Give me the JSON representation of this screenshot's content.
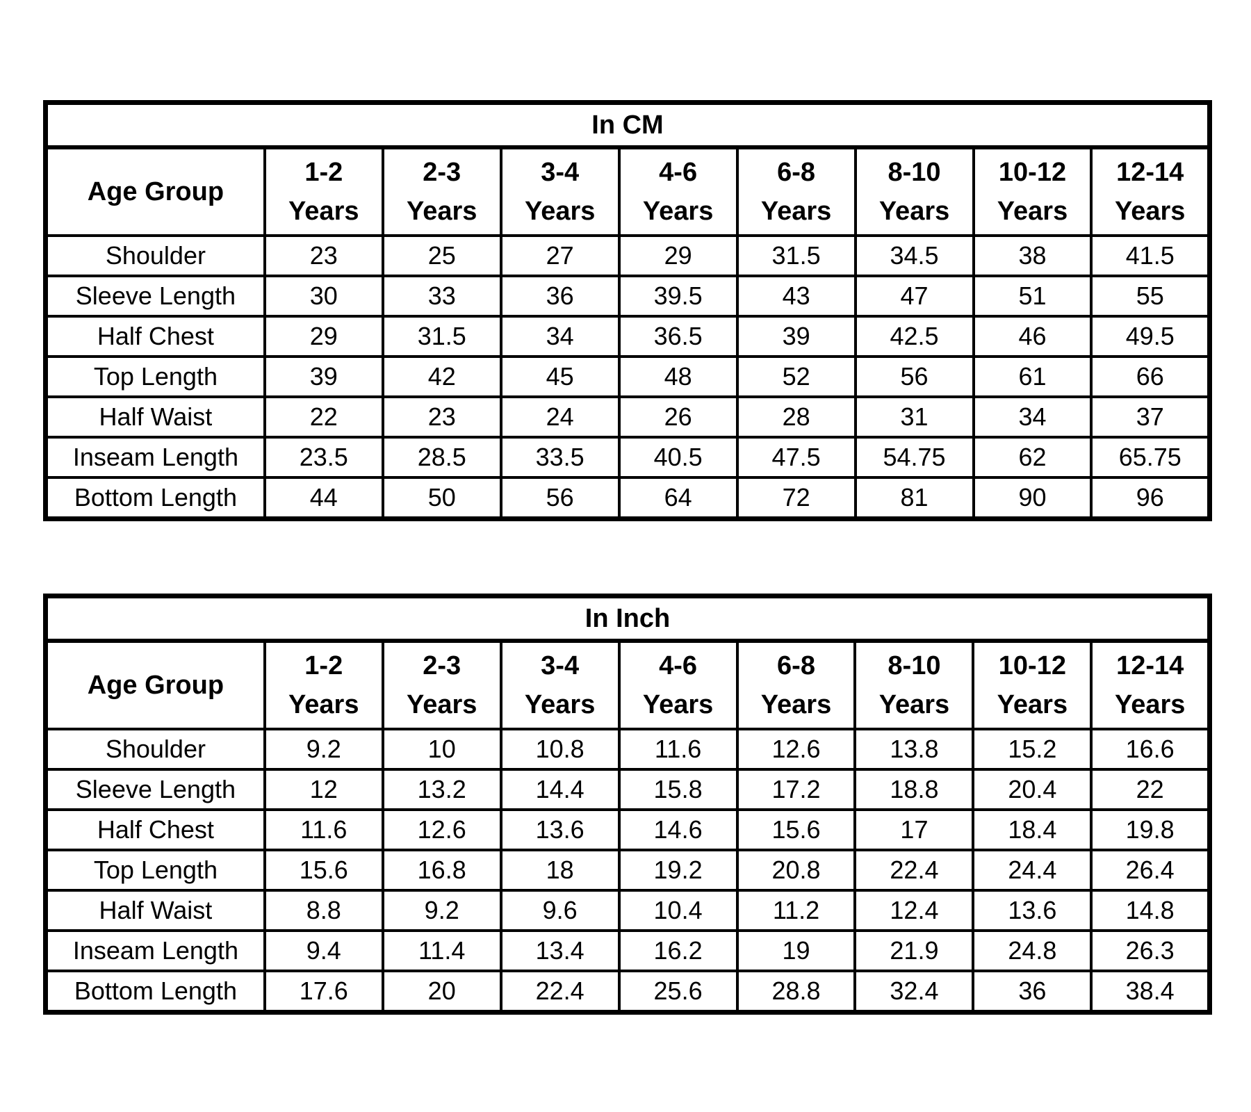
{
  "page": {
    "background_color": "#ffffff",
    "border_color": "#000000",
    "text_color": "#000000"
  },
  "tables": [
    {
      "title": "In CM",
      "corner_header": "Age Group",
      "columns": [
        {
          "range": "1-2",
          "unit": "Years"
        },
        {
          "range": "2-3",
          "unit": "Years"
        },
        {
          "range": "3-4",
          "unit": "Years"
        },
        {
          "range": "4-6",
          "unit": "Years"
        },
        {
          "range": "6-8",
          "unit": "Years"
        },
        {
          "range": "8-10",
          "unit": "Years"
        },
        {
          "range": "10-12",
          "unit": "Years"
        },
        {
          "range": "12-14",
          "unit": "Years"
        }
      ],
      "rows": [
        {
          "label": "Shoulder",
          "values": [
            "23",
            "25",
            "27",
            "29",
            "31.5",
            "34.5",
            "38",
            "41.5"
          ]
        },
        {
          "label": "Sleeve Length",
          "values": [
            "30",
            "33",
            "36",
            "39.5",
            "43",
            "47",
            "51",
            "55"
          ]
        },
        {
          "label": "Half Chest",
          "values": [
            "29",
            "31.5",
            "34",
            "36.5",
            "39",
            "42.5",
            "46",
            "49.5"
          ]
        },
        {
          "label": "Top Length",
          "values": [
            "39",
            "42",
            "45",
            "48",
            "52",
            "56",
            "61",
            "66"
          ]
        },
        {
          "label": "Half Waist",
          "values": [
            "22",
            "23",
            "24",
            "26",
            "28",
            "31",
            "34",
            "37"
          ]
        },
        {
          "label": "Inseam Length",
          "values": [
            "23.5",
            "28.5",
            "33.5",
            "40.5",
            "47.5",
            "54.75",
            "62",
            "65.75"
          ]
        },
        {
          "label": "Bottom Length",
          "values": [
            "44",
            "50",
            "56",
            "64",
            "72",
            "81",
            "90",
            "96"
          ]
        }
      ]
    },
    {
      "title": "In Inch",
      "corner_header": "Age Group",
      "columns": [
        {
          "range": "1-2",
          "unit": "Years"
        },
        {
          "range": "2-3",
          "unit": "Years"
        },
        {
          "range": "3-4",
          "unit": "Years"
        },
        {
          "range": "4-6",
          "unit": "Years"
        },
        {
          "range": "6-8",
          "unit": "Years"
        },
        {
          "range": "8-10",
          "unit": "Years"
        },
        {
          "range": "10-12",
          "unit": "Years"
        },
        {
          "range": "12-14",
          "unit": "Years"
        }
      ],
      "rows": [
        {
          "label": "Shoulder",
          "values": [
            "9.2",
            "10",
            "10.8",
            "11.6",
            "12.6",
            "13.8",
            "15.2",
            "16.6"
          ]
        },
        {
          "label": "Sleeve Length",
          "values": [
            "12",
            "13.2",
            "14.4",
            "15.8",
            "17.2",
            "18.8",
            "20.4",
            "22"
          ]
        },
        {
          "label": "Half Chest",
          "values": [
            "11.6",
            "12.6",
            "13.6",
            "14.6",
            "15.6",
            "17",
            "18.4",
            "19.8"
          ]
        },
        {
          "label": "Top Length",
          "values": [
            "15.6",
            "16.8",
            "18",
            "19.2",
            "20.8",
            "22.4",
            "24.4",
            "26.4"
          ]
        },
        {
          "label": "Half Waist",
          "values": [
            "8.8",
            "9.2",
            "9.6",
            "10.4",
            "11.2",
            "12.4",
            "13.6",
            "14.8"
          ]
        },
        {
          "label": "Inseam Length",
          "values": [
            "9.4",
            "11.4",
            "13.4",
            "16.2",
            "19",
            "21.9",
            "24.8",
            "26.3"
          ]
        },
        {
          "label": "Bottom Length",
          "values": [
            "17.6",
            "20",
            "22.4",
            "25.6",
            "28.8",
            "32.4",
            "36",
            "38.4"
          ]
        }
      ]
    }
  ]
}
